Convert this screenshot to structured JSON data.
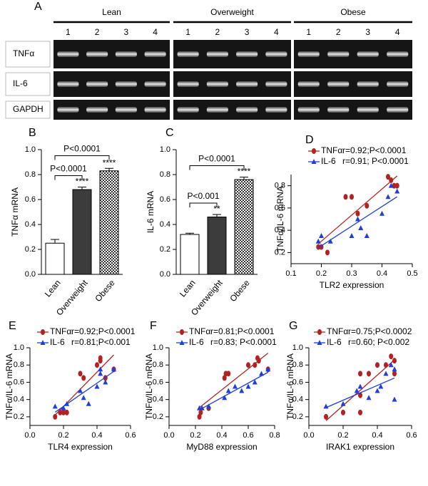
{
  "gel": {
    "panel": "A",
    "groups": [
      {
        "name": "Lean",
        "lanes": [
          "1",
          "2",
          "3",
          "4"
        ]
      },
      {
        "name": "Overweight",
        "lanes": [
          "1",
          "2",
          "3",
          "4"
        ]
      },
      {
        "name": "Obese",
        "lanes": [
          "1",
          "2",
          "3",
          "4"
        ]
      }
    ],
    "rows": [
      "TNFα",
      "IL-6",
      "GAPDH"
    ]
  },
  "chart_data": [
    {
      "type": "bar",
      "panel": "B",
      "ylabel": "TNFα mRNA",
      "categories": [
        "Lean",
        "Overweight",
        "Obese"
      ],
      "values": [
        0.25,
        0.68,
        0.83
      ],
      "errors": [
        0.03,
        0.02,
        0.02
      ],
      "colors": [
        "#ffffff",
        "#3c3c3c",
        "#8a8a8a"
      ],
      "hatch": [
        false,
        false,
        true
      ],
      "significance": [
        null,
        "****",
        "****"
      ],
      "comparisons": [
        {
          "label": "P<0.0001",
          "between": [
            "Lean",
            "Overweight"
          ]
        },
        {
          "label": "P<0.0001",
          "between": [
            "Lean",
            "Obese"
          ]
        }
      ],
      "ylim": [
        0,
        1
      ],
      "yticks": [
        {
          "value": 0,
          "label": "0.0"
        },
        0.2,
        0.4,
        0.6,
        0.8,
        {
          "value": 1,
          "label": "1.0"
        }
      ]
    },
    {
      "type": "bar",
      "panel": "C",
      "ylabel": "IL-6 mRNA",
      "categories": [
        "Lean",
        "Overweight",
        "Obese"
      ],
      "values": [
        0.32,
        0.46,
        0.76
      ],
      "errors": [
        0.01,
        0.02,
        0.02
      ],
      "colors": [
        "#ffffff",
        "#3c3c3c",
        "#8a8a8a"
      ],
      "hatch": [
        false,
        false,
        true
      ],
      "significance": [
        null,
        "**",
        "****"
      ],
      "comparisons": [
        {
          "label": "P<0.001",
          "between": [
            "Lean",
            "Overweight"
          ]
        },
        {
          "label": "P<0.0001",
          "between": [
            "Lean",
            "Obese"
          ]
        }
      ],
      "ylim": [
        0,
        1
      ],
      "yticks": [
        {
          "value": 0,
          "label": "0.0"
        },
        0.2,
        0.4,
        0.6,
        0.8,
        {
          "value": 1,
          "label": "1.0"
        }
      ]
    },
    {
      "type": "scatter",
      "panel": "D",
      "xlabel": "TLR2 expression",
      "ylabel": "TNFα/IL-6 mRNA",
      "xlim": [
        0.1,
        0.5
      ],
      "xticks": [
        0.1,
        0.2,
        0.3,
        0.4,
        0.5
      ],
      "ylim": [
        0.1,
        0.9
      ],
      "yticks": [
        0.2,
        0.4,
        0.6,
        0.8
      ],
      "series": [
        {
          "name": "TNFα",
          "stat": "r=0.92;P<0.0001",
          "color": "#b22222",
          "marker": "circle",
          "x": [
            0.19,
            0.2,
            0.22,
            0.28,
            0.3,
            0.32,
            0.35,
            0.42,
            0.43,
            0.44,
            0.45
          ],
          "values": [
            0.25,
            0.25,
            0.2,
            0.7,
            0.7,
            0.55,
            0.62,
            0.88,
            0.85,
            0.8,
            0.8
          ]
        },
        {
          "name": "IL-6",
          "stat": "r=0.91; P<0.0001",
          "color": "#1f3fd6",
          "marker": "triangle",
          "x": [
            0.19,
            0.2,
            0.23,
            0.3,
            0.32,
            0.33,
            0.35,
            0.4,
            0.42,
            0.43,
            0.45
          ],
          "values": [
            0.3,
            0.35,
            0.3,
            0.35,
            0.5,
            0.42,
            0.35,
            0.55,
            0.7,
            0.8,
            0.75
          ]
        }
      ]
    },
    {
      "type": "scatter",
      "panel": "E",
      "xlabel": "TLR4 expression",
      "ylabel": "TNFα/IL-6 mRNA",
      "xlim": [
        0,
        0.6
      ],
      "xticks": [
        {
          "value": 0,
          "label": "0.0"
        },
        0.2,
        0.4,
        0.6
      ],
      "ylim": [
        0.1,
        1
      ],
      "yticks": [
        0.2,
        0.4,
        0.6,
        0.8,
        {
          "value": 1,
          "label": "1.0"
        }
      ],
      "series": [
        {
          "name": "TNFα",
          "stat": "r=0.92;P<0.0001",
          "color": "#b22222",
          "marker": "circle",
          "x": [
            0.15,
            0.18,
            0.2,
            0.22,
            0.3,
            0.32,
            0.4,
            0.42,
            0.42,
            0.45,
            0.5
          ],
          "values": [
            0.2,
            0.25,
            0.25,
            0.25,
            0.7,
            0.65,
            0.8,
            0.88,
            0.85,
            0.65,
            0.75
          ]
        },
        {
          "name": "IL-6",
          "stat": "r=0.81;P<0.001",
          "color": "#1f3fd6",
          "marker": "triangle",
          "x": [
            0.15,
            0.2,
            0.22,
            0.3,
            0.32,
            0.35,
            0.4,
            0.42,
            0.42,
            0.45,
            0.5
          ],
          "values": [
            0.32,
            0.3,
            0.35,
            0.5,
            0.42,
            0.35,
            0.55,
            0.7,
            0.75,
            0.6,
            0.75
          ]
        }
      ]
    },
    {
      "type": "scatter",
      "panel": "F",
      "xlabel": "MyD88 expression",
      "ylabel": "TNFα/IL-6 mRNA",
      "xlim": [
        0,
        0.8
      ],
      "xticks": [
        {
          "value": 0,
          "label": "0.0"
        },
        0.2,
        0.4,
        0.6,
        0.8
      ],
      "ylim": [
        0.1,
        1
      ],
      "yticks": [
        0.2,
        0.4,
        0.6,
        0.8,
        {
          "value": 1,
          "label": "1.0"
        }
      ],
      "series": [
        {
          "name": "TNFα",
          "stat": "r=0.81;P<0.0001",
          "color": "#b22222",
          "marker": "circle",
          "x": [
            0.23,
            0.24,
            0.3,
            0.42,
            0.43,
            0.45,
            0.6,
            0.65,
            0.67,
            0.68,
            0.75
          ],
          "values": [
            0.2,
            0.25,
            0.3,
            0.65,
            0.7,
            0.7,
            0.8,
            0.8,
            0.88,
            0.85,
            0.75
          ]
        },
        {
          "name": "IL-6",
          "stat": "r=0.83; P<0.0001",
          "color": "#1f3fd6",
          "marker": "triangle",
          "x": [
            0.23,
            0.25,
            0.3,
            0.42,
            0.45,
            0.5,
            0.55,
            0.6,
            0.65,
            0.7,
            0.75
          ],
          "values": [
            0.3,
            0.3,
            0.32,
            0.42,
            0.5,
            0.55,
            0.5,
            0.55,
            0.6,
            0.7,
            0.75
          ]
        }
      ]
    },
    {
      "type": "scatter",
      "panel": "G",
      "xlabel": "IRAK1 expression",
      "ylabel": "TNFα/IL-6 mRNA",
      "xlim": [
        0,
        0.6
      ],
      "xticks": [
        {
          "value": 0,
          "label": "0.0"
        },
        0.2,
        0.4,
        0.6
      ],
      "ylim": [
        0.1,
        1
      ],
      "yticks": [
        0.2,
        0.4,
        0.6,
        0.8,
        {
          "value": 1,
          "label": "1.0"
        }
      ],
      "series": [
        {
          "name": "TNFα",
          "stat": "r=0.75;P<0.0002",
          "color": "#b22222",
          "marker": "circle",
          "x": [
            0.1,
            0.2,
            0.3,
            0.3,
            0.35,
            0.4,
            0.45,
            0.48,
            0.5,
            0.5,
            0.3
          ],
          "values": [
            0.2,
            0.25,
            0.25,
            0.45,
            0.7,
            0.8,
            0.8,
            0.9,
            0.85,
            0.7,
            0.7
          ]
        },
        {
          "name": "IL-6",
          "stat": "r=0.60; P<0.002",
          "color": "#1f3fd6",
          "marker": "triangle",
          "x": [
            0.1,
            0.2,
            0.28,
            0.3,
            0.35,
            0.4,
            0.42,
            0.45,
            0.48,
            0.5,
            0.5
          ],
          "values": [
            0.32,
            0.35,
            0.5,
            0.55,
            0.42,
            0.5,
            0.55,
            0.7,
            0.8,
            0.75,
            0.4
          ]
        }
      ]
    }
  ]
}
